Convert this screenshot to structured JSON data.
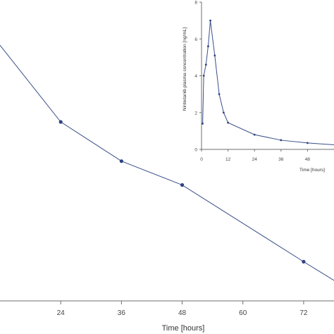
{
  "chart_data": [
    {
      "type": "line",
      "title": "",
      "xlabel": "Time [hours]",
      "ylabel": "",
      "xlim": [
        12,
        78
      ],
      "ylim": [
        0.0,
        1.6
      ],
      "xticks": [
        24,
        36,
        48,
        60,
        72
      ],
      "grid": false,
      "series": [
        {
          "marker_color": "#2f4384",
          "line_color": "#3a4f8a",
          "x": [
            12,
            24,
            36,
            48,
            72,
            78
          ],
          "y": [
            1.5,
            1.05,
            0.82,
            0.68,
            0.23,
            0.12
          ],
          "markers": [
            false,
            true,
            true,
            true,
            true,
            false
          ]
        }
      ]
    },
    {
      "type": "line",
      "title": "",
      "xlabel": "Time [hours]",
      "ylabel": "Nintedanib plasma concentration [ng/mL]",
      "xlim": [
        0,
        60
      ],
      "ylim": [
        0,
        8
      ],
      "xticks": [
        0,
        12,
        24,
        36,
        48
      ],
      "yticks": [
        0,
        2,
        4,
        6,
        8
      ],
      "grid": false,
      "series": [
        {
          "marker_color": "#2f4384",
          "line_color": "#3a4f8a",
          "x": [
            0.5,
            1,
            2,
            3,
            4,
            6,
            8,
            10,
            12,
            24,
            36,
            48,
            60
          ],
          "y": [
            1.4,
            4.0,
            4.6,
            5.6,
            7.0,
            5.1,
            3.0,
            2.0,
            1.45,
            0.8,
            0.5,
            0.35,
            0.25
          ],
          "markers": [
            true,
            true,
            true,
            true,
            true,
            true,
            true,
            true,
            true,
            true,
            true,
            true,
            false
          ]
        }
      ]
    }
  ]
}
